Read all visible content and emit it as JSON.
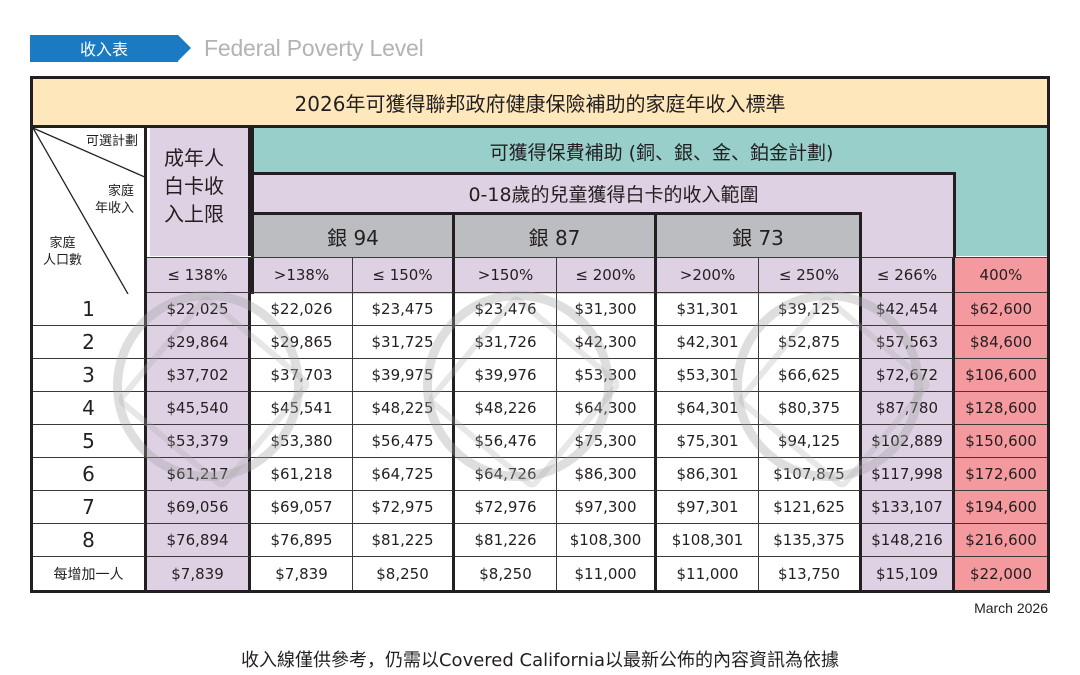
{
  "banner": {
    "tag": "收入表",
    "subtitle": "Federal Poverty Level"
  },
  "table": {
    "title": "2026年可獲得聯邦政府健康保險補助的家庭年收入標準",
    "corner": {
      "top_right": "可選計劃",
      "middle": [
        "家庭",
        "年收入"
      ],
      "bottom_left": [
        "家庭",
        "人口數"
      ]
    },
    "adult_header": [
      "成年人",
      "白卡收",
      "入上限"
    ],
    "subsidy_header": "可獲得保費補助 (銅、銀、金、鉑金計劃)",
    "children_header": "0-18歲的兒童獲得白卡的收入範圍",
    "silver_tiers": [
      "銀 94",
      "銀 87",
      "銀 73"
    ],
    "percent_headers": [
      "≤ 138%",
      ">138%",
      "≤ 150%",
      ">150%",
      "≤ 200%",
      ">200%",
      "≤ 250%",
      "≤ 266%",
      "400%"
    ],
    "rows": [
      {
        "label": "1",
        "values": [
          "$22,025",
          "$22,026",
          "$23,475",
          "$23,476",
          "$31,300",
          "$31,301",
          "$39,125",
          "$42,454",
          "$62,600"
        ]
      },
      {
        "label": "2",
        "values": [
          "$29,864",
          "$29,865",
          "$31,725",
          "$31,726",
          "$42,300",
          "$42,301",
          "$52,875",
          "$57,563",
          "$84,600"
        ]
      },
      {
        "label": "3",
        "values": [
          "$37,702",
          "$37,703",
          "$39,975",
          "$39,976",
          "$53,300",
          "$53,301",
          "$66,625",
          "$72,672",
          "$106,600"
        ]
      },
      {
        "label": "4",
        "values": [
          "$45,540",
          "$45,541",
          "$48,225",
          "$48,226",
          "$64,300",
          "$64,301",
          "$80,375",
          "$87,780",
          "$128,600"
        ]
      },
      {
        "label": "5",
        "values": [
          "$53,379",
          "$53,380",
          "$56,475",
          "$56,476",
          "$75,300",
          "$75,301",
          "$94,125",
          "$102,889",
          "$150,600"
        ]
      },
      {
        "label": "6",
        "values": [
          "$61,217",
          "$61,218",
          "$64,725",
          "$64,726",
          "$86,300",
          "$86,301",
          "$107,875",
          "$117,998",
          "$172,600"
        ]
      },
      {
        "label": "7",
        "values": [
          "$69,056",
          "$69,057",
          "$72,975",
          "$72,976",
          "$97,300",
          "$97,301",
          "$121,625",
          "$133,107",
          "$194,600"
        ]
      },
      {
        "label": "8",
        "values": [
          "$76,894",
          "$76,895",
          "$81,225",
          "$81,226",
          "$108,300",
          "$108,301",
          "$135,375",
          "$148,216",
          "$216,600"
        ]
      },
      {
        "label": "每增加一人",
        "values": [
          "$7,839",
          "$7,839",
          "$8,250",
          "$8,250",
          "$11,000",
          "$11,000",
          "$13,750",
          "$15,109",
          "$22,000"
        ]
      }
    ]
  },
  "colors": {
    "banner_blue": "#1a7bc3",
    "title_bg": "#fee8bb",
    "teal": "#98cfcb",
    "purple": "#ded1e3",
    "gray": "#bcbdc0",
    "red": "#f4999e"
  },
  "date": "March 2026",
  "footer_note": "收入線僅供參考，仍需以Covered California以最新公佈的內容資訊為依據"
}
